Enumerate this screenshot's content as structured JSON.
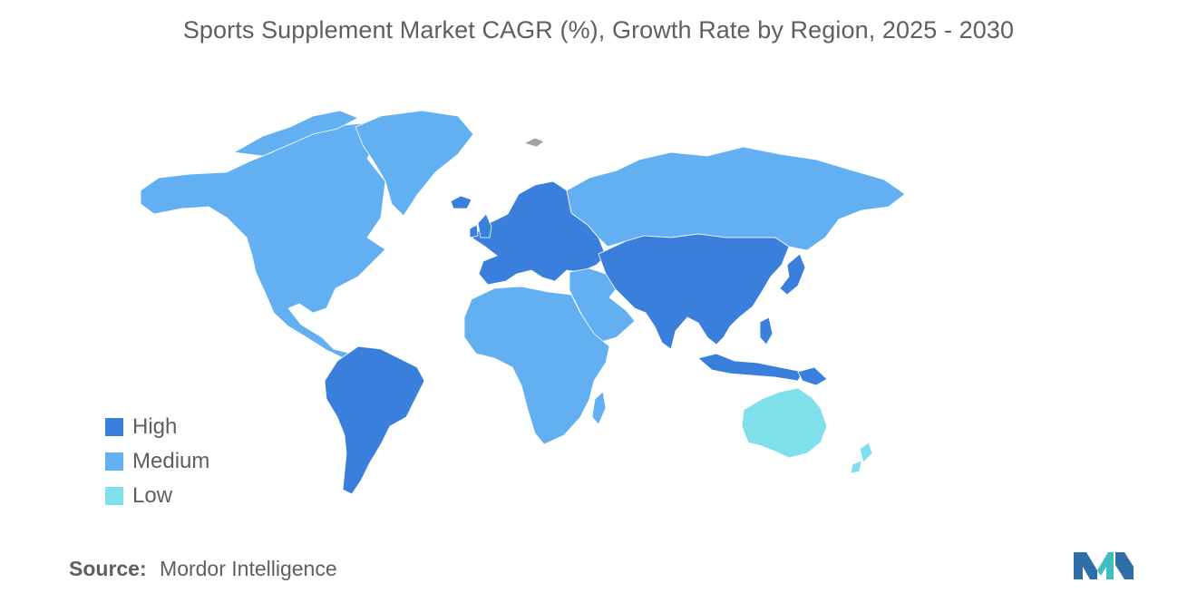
{
  "title": "Sports Supplement Market CAGR (%), Growth Rate by Region, 2025 - 2030",
  "colors": {
    "high": "#3a7fdc",
    "medium": "#62b0f2",
    "low": "#7fe0ec",
    "no_data": "#a0a0a8",
    "text": "#5f5f5f",
    "logo_dark": "#2f6fa8",
    "logo_teal": "#3fbfc2"
  },
  "legend": [
    {
      "key": "high",
      "label": "High"
    },
    {
      "key": "medium",
      "label": "Medium"
    },
    {
      "key": "low",
      "label": "Low"
    }
  ],
  "regions": {
    "north_america": "medium",
    "greenland": "medium",
    "south_america": "high",
    "europe": "high",
    "russia": "medium",
    "middle_east": "medium",
    "africa": "medium",
    "asia_pacific": "high",
    "australia": "low",
    "new_zealand": "low"
  },
  "source": {
    "label": "Source:",
    "name": "Mordor Intelligence"
  },
  "logo": {
    "icon": "mordor-intelligence-logo"
  }
}
